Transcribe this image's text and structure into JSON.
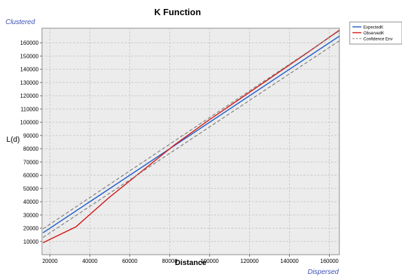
{
  "chart_data": {
    "type": "line",
    "title": "K Function",
    "xlabel": "Distance",
    "ylabel": "L(d)",
    "corner_labels": {
      "top_left": "Clustered",
      "bottom_right": "Dispersed"
    },
    "xlim": [
      16000,
      165000
    ],
    "ylim": [
      0,
      171000
    ],
    "x_ticks": [
      20000,
      40000,
      60000,
      80000,
      100000,
      120000,
      140000,
      160000
    ],
    "y_ticks": [
      10000,
      20000,
      30000,
      40000,
      50000,
      60000,
      70000,
      80000,
      90000,
      100000,
      110000,
      120000,
      130000,
      140000,
      150000,
      160000
    ],
    "grid": true,
    "legend_position": "top-right-outside",
    "series": [
      {
        "name": "ExpectedK",
        "color": "#1f5fc9",
        "style": "solid",
        "x": [
          16500,
          165000
        ],
        "y": [
          16500,
          165000
        ]
      },
      {
        "name": "ObservedK",
        "color": "#d41a1a",
        "style": "solid",
        "x": [
          16500,
          33000,
          49500,
          66000,
          82500,
          99000,
          115500,
          132000,
          148500,
          165000
        ],
        "y": [
          9000,
          21000,
          43000,
          63000,
          83000,
          101000,
          118000,
          135000,
          152000,
          169500
        ]
      },
      {
        "name": "Confidence Env",
        "color": "#7f7f7f",
        "style": "dashed",
        "x": [
          16500,
          165000
        ],
        "y": [
          19500,
          169000
        ]
      },
      {
        "name": "",
        "color": "#7f7f7f",
        "style": "dashed",
        "x": [
          16500,
          165000
        ],
        "y": [
          13000,
          161500
        ]
      }
    ]
  }
}
